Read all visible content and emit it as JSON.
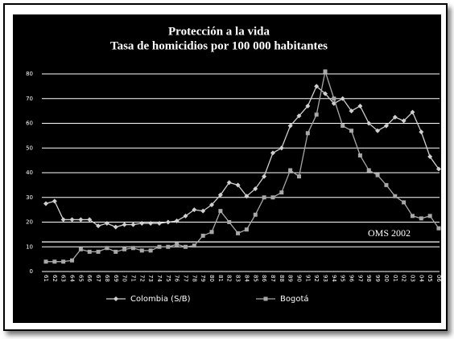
{
  "chart_data": {
    "type": "line",
    "title": "Protección a la vida",
    "subtitle": "Tasa de homicidios por 100 000 habitantes",
    "categories": [
      "61",
      "62",
      "63",
      "64",
      "65",
      "66",
      "67",
      "68",
      "69",
      "70",
      "71",
      "72",
      "73",
      "74",
      "75",
      "76",
      "77",
      "78",
      "79",
      "80",
      "81",
      "82",
      "83",
      "84",
      "85",
      "86",
      "87",
      "88",
      "89",
      "90",
      "91",
      "92",
      "93",
      "94",
      "95",
      "96",
      "97",
      "98",
      "99",
      "00",
      "01",
      "02",
      "03",
      "04",
      "05",
      "06"
    ],
    "series": [
      {
        "name": "Colombia (S/B)",
        "color": "#d0d0d0",
        "marker": "diamond",
        "values": [
          27.5,
          28.5,
          21,
          21,
          21,
          21,
          18.5,
          19.5,
          18,
          19,
          19,
          19.5,
          19.5,
          19.5,
          20,
          20.5,
          22.5,
          25,
          24.5,
          27,
          31,
          36,
          35,
          30.5,
          33.5,
          38.5,
          48,
          50,
          59,
          63,
          67,
          75,
          72,
          68,
          70,
          65,
          67,
          60,
          57,
          59,
          62.5,
          61,
          64.5,
          56.5,
          46.5,
          41.5
        ]
      },
      {
        "name": "Bogotá",
        "color": "#a8a8a8",
        "marker": "square",
        "values": [
          4,
          4,
          4,
          4.5,
          9,
          8,
          8,
          9.5,
          8,
          9,
          9.5,
          8.5,
          8.5,
          10,
          10,
          11,
          10,
          10.5,
          14.5,
          16,
          24.5,
          20,
          15.5,
          17,
          23,
          30,
          30,
          32,
          41,
          38.5,
          56,
          63.5,
          81,
          70,
          59,
          57,
          47,
          41,
          39,
          35,
          30.5,
          28,
          22.5,
          21.5,
          22.5,
          17.5
        ]
      }
    ],
    "ylim": [
      0,
      80
    ],
    "yticks": [
      0,
      10,
      20,
      30,
      40,
      50,
      60,
      70,
      80
    ],
    "grid": true,
    "annotation": {
      "text": "OMS 2002",
      "value": 12
    }
  }
}
